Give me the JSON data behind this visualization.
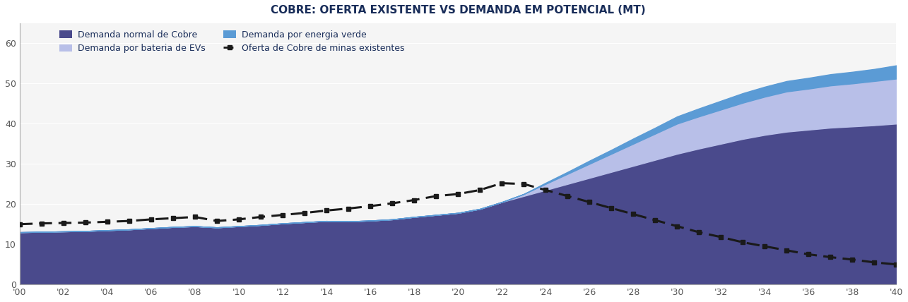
{
  "title": "COBRE: OFERTA EXISTENTE VS DEMANDA EM POTENCIAL (MT)",
  "title_color": "#1a2e5a",
  "title_fontsize": 11,
  "background_color": "#ffffff",
  "plot_bg_color": "#f5f5f5",
  "years": [
    2000,
    2001,
    2002,
    2003,
    2004,
    2005,
    2006,
    2007,
    2008,
    2009,
    2010,
    2011,
    2012,
    2013,
    2014,
    2015,
    2016,
    2017,
    2018,
    2019,
    2020,
    2021,
    2022,
    2023,
    2024,
    2025,
    2026,
    2027,
    2028,
    2029,
    2030,
    2031,
    2032,
    2033,
    2034,
    2035,
    2036,
    2037,
    2038,
    2039,
    2040
  ],
  "demanda_normal": [
    13.0,
    13.1,
    13.2,
    13.3,
    13.5,
    13.7,
    14.0,
    14.3,
    14.5,
    14.2,
    14.5,
    14.8,
    15.2,
    15.5,
    15.8,
    15.7,
    15.9,
    16.2,
    16.8,
    17.3,
    17.8,
    18.8,
    20.5,
    22.0,
    23.5,
    25.0,
    26.5,
    28.0,
    29.5,
    31.0,
    32.5,
    33.8,
    35.0,
    36.2,
    37.2,
    38.0,
    38.5,
    39.0,
    39.3,
    39.6,
    40.0
  ],
  "demanda_bateria": [
    0,
    0,
    0,
    0,
    0,
    0,
    0,
    0,
    0,
    0,
    0,
    0,
    0,
    0,
    0,
    0,
    0,
    0,
    0,
    0,
    0,
    0,
    0,
    0.5,
    1.5,
    2.5,
    3.5,
    4.5,
    5.5,
    6.5,
    7.5,
    8.0,
    8.5,
    9.0,
    9.5,
    10.0,
    10.2,
    10.5,
    10.7,
    11.0,
    11.2
  ],
  "demanda_verde": [
    0,
    0,
    0,
    0,
    0,
    0,
    0,
    0,
    0,
    0,
    0,
    0,
    0,
    0,
    0,
    0,
    0,
    0,
    0,
    0,
    0,
    0,
    0,
    0,
    0.3,
    0.5,
    0.8,
    1.0,
    1.3,
    1.5,
    1.8,
    2.0,
    2.2,
    2.4,
    2.5,
    2.6,
    2.7,
    2.8,
    2.9,
    3.0,
    3.3
  ],
  "oferta_minas": [
    15.0,
    15.2,
    15.3,
    15.4,
    15.6,
    15.8,
    16.2,
    16.5,
    16.8,
    15.8,
    16.2,
    16.8,
    17.3,
    17.8,
    18.4,
    18.9,
    19.5,
    20.2,
    21.0,
    22.0,
    22.5,
    23.5,
    25.2,
    25.0,
    23.5,
    22.0,
    20.5,
    19.0,
    17.5,
    16.0,
    14.5,
    13.0,
    11.8,
    10.5,
    9.5,
    8.5,
    7.5,
    6.8,
    6.2,
    5.5,
    5.0
  ],
  "color_demanda_normal": "#4a4a8c",
  "color_demanda_bateria": "#b8bfe8",
  "color_demanda_verde": "#5b9bd5",
  "color_oferta": "#1a1a1a",
  "ylim": [
    0,
    65
  ],
  "yticks": [
    0,
    10,
    20,
    30,
    40,
    50,
    60
  ],
  "xtick_labels": [
    "'00",
    "'02",
    "'04",
    "'06",
    "'08",
    "'10",
    "'12",
    "'14",
    "'16",
    "'18",
    "'20",
    "'22",
    "'24",
    "'26",
    "'28",
    "'30",
    "'32",
    "'34",
    "'36",
    "'38",
    "'40"
  ],
  "xtick_years": [
    2000,
    2002,
    2004,
    2006,
    2008,
    2010,
    2012,
    2014,
    2016,
    2018,
    2020,
    2022,
    2024,
    2026,
    2028,
    2030,
    2032,
    2034,
    2036,
    2038,
    2040
  ],
  "legend_labels": [
    "Demanda normal de Cobre",
    "Demanda por bateria de EVs",
    "Demanda por energia verde",
    "Oferta de Cobre de minas existentes"
  ],
  "legend_text_color": "#1a2e5a"
}
